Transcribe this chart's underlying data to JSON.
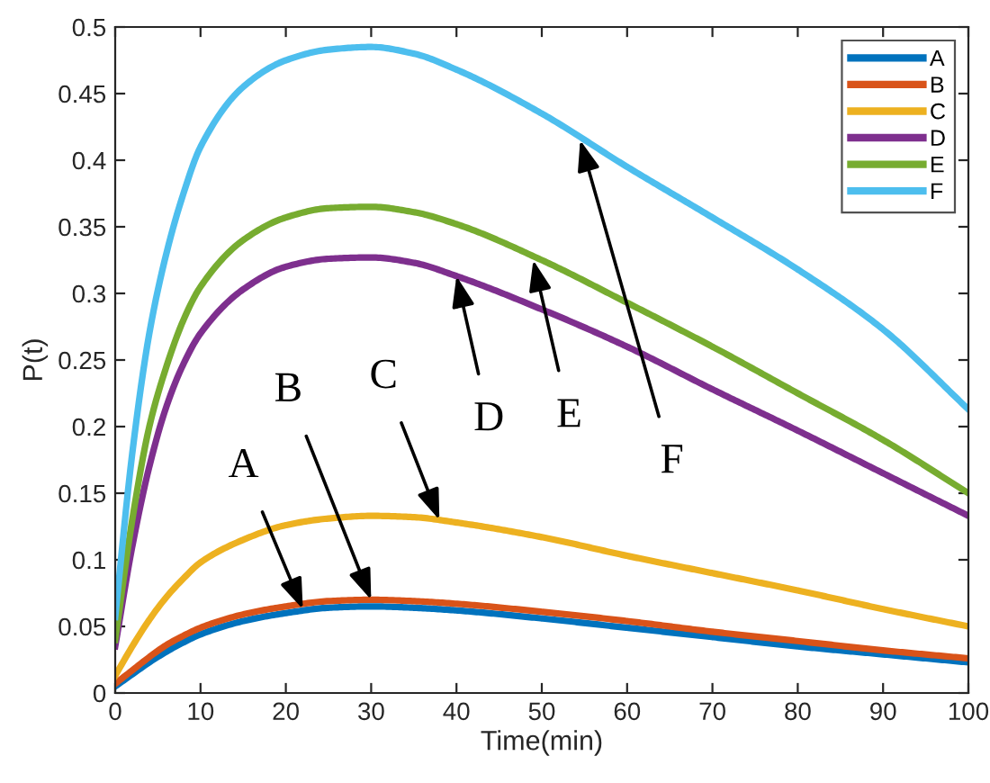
{
  "chart_data": {
    "type": "line",
    "xlabel": "Time(min)",
    "ylabel": "P(t)",
    "x": [
      0,
      2,
      4,
      6,
      8,
      10,
      15,
      20,
      25,
      30,
      35,
      40,
      50,
      60,
      70,
      80,
      90,
      100
    ],
    "series": [
      {
        "name": "A",
        "color": "#0072bd",
        "values": [
          0.005,
          0.014,
          0.023,
          0.031,
          0.038,
          0.044,
          0.054,
          0.06,
          0.064,
          0.065,
          0.064,
          0.062,
          0.056,
          0.049,
          0.042,
          0.035,
          0.029,
          0.023
        ]
      },
      {
        "name": "B",
        "color": "#d95319",
        "values": [
          0.007,
          0.017,
          0.027,
          0.036,
          0.043,
          0.049,
          0.059,
          0.065,
          0.069,
          0.07,
          0.069,
          0.067,
          0.061,
          0.054,
          0.046,
          0.039,
          0.032,
          0.026
        ]
      },
      {
        "name": "C",
        "color": "#edb120",
        "values": [
          0.013,
          0.035,
          0.055,
          0.072,
          0.086,
          0.098,
          0.115,
          0.126,
          0.131,
          0.133,
          0.132,
          0.128,
          0.117,
          0.103,
          0.09,
          0.077,
          0.063,
          0.05
        ]
      },
      {
        "name": "D",
        "color": "#7e2f8e",
        "values": [
          0.035,
          0.11,
          0.17,
          0.215,
          0.247,
          0.27,
          0.303,
          0.32,
          0.326,
          0.327,
          0.323,
          0.313,
          0.288,
          0.26,
          0.228,
          0.197,
          0.165,
          0.133
        ]
      },
      {
        "name": "E",
        "color": "#77ac30",
        "values": [
          0.04,
          0.13,
          0.2,
          0.245,
          0.28,
          0.305,
          0.34,
          0.357,
          0.364,
          0.365,
          0.361,
          0.352,
          0.325,
          0.293,
          0.26,
          0.225,
          0.19,
          0.15
        ]
      },
      {
        "name": "F",
        "color": "#4dbeee",
        "values": [
          0.057,
          0.18,
          0.27,
          0.33,
          0.375,
          0.41,
          0.455,
          0.475,
          0.483,
          0.485,
          0.48,
          0.468,
          0.435,
          0.395,
          0.357,
          0.318,
          0.273,
          0.213
        ]
      }
    ],
    "xlim": [
      0,
      100
    ],
    "xticks": [
      0,
      10,
      20,
      30,
      40,
      50,
      60,
      70,
      80,
      90,
      100
    ],
    "ylim": [
      0,
      0.5
    ],
    "yticks": [
      0,
      0.05,
      0.1,
      0.15,
      0.2,
      0.25,
      0.3,
      0.35,
      0.4,
      0.45,
      0.5
    ],
    "grid": false,
    "legend": "top right",
    "marker": "none",
    "line_style": "solid",
    "annotations": [
      {
        "text": "A",
        "x": 22,
        "y": 0.063
      },
      {
        "text": "B",
        "x": 30,
        "y": 0.07
      },
      {
        "text": "C",
        "x": 38,
        "y": 0.13
      },
      {
        "text": "D",
        "x": 40,
        "y": 0.313
      },
      {
        "text": "E",
        "x": 49,
        "y": 0.325
      },
      {
        "text": "F",
        "x": 54.5,
        "y": 0.415
      }
    ]
  }
}
